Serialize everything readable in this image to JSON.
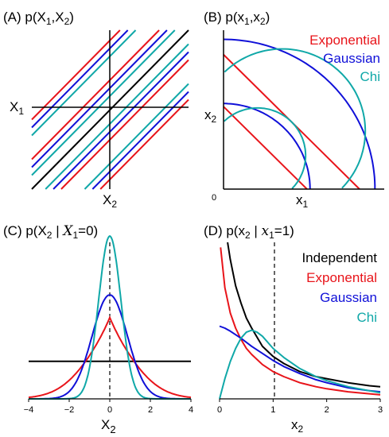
{
  "colors": {
    "exponential": "#e8141a",
    "gaussian": "#1010d8",
    "chi": "#10a8a8",
    "independent": "#000000"
  },
  "panels": [
    {
      "id": "A",
      "title": "(A)  p(X",
      "title_sub1": "1",
      "title_mid": ",X",
      "title_sub2": "2",
      "title_end": ")",
      "x_axis_label": "X",
      "x_axis_label_sub": "2",
      "y_axis_label": "X",
      "y_axis_label_sub": "1"
    },
    {
      "id": "B",
      "title": "(B)  p(x",
      "title_sub1": "1",
      "title_mid": ",x",
      "title_sub2": "2",
      "title_end": ")",
      "x_axis_label": "x",
      "x_axis_label_sub": "1",
      "y_axis_label": "x",
      "y_axis_label_sub": "2",
      "origin_label": "0",
      "legend": [
        "Exponential",
        "Gaussian",
        "Chi"
      ]
    },
    {
      "id": "C",
      "title": "(C)  p(X",
      "title_sub": "2",
      "title_cond": " | ",
      "title_var": "X",
      "title_var_sub": "1",
      "title_end": "=0)",
      "x_axis_label": "X",
      "x_axis_label_sub": "2"
    },
    {
      "id": "D",
      "title": "(D)  p(x",
      "title_sub": "2",
      "title_cond": " | ",
      "title_var": "x",
      "title_var_sub": "1",
      "title_end": "=1)",
      "x_axis_label": "x",
      "x_axis_label_sub": "2",
      "legend": [
        "Independent",
        "Exponential",
        "Gaussian",
        "Chi"
      ]
    }
  ],
  "chart_data": [
    {
      "panel": "A",
      "type": "line",
      "xlim": [
        -4,
        4
      ],
      "ylim": [
        -4,
        4
      ],
      "description_lines": "iso-density contours x1 = x2 + c",
      "series": [
        {
          "name": "Independent",
          "offsets": [
            0
          ]
        },
        {
          "name": "Exponential",
          "offsets": [
            -3.5,
            -1.5,
            1.5,
            3.5
          ]
        },
        {
          "name": "Gaussian",
          "offsets": [
            -3.1,
            -1.1,
            1.1,
            3.1
          ]
        },
        {
          "name": "Chi",
          "offsets": [
            -2.7,
            -0.7,
            0.7,
            2.7
          ]
        }
      ]
    },
    {
      "panel": "B",
      "type": "line",
      "xlim": [
        0,
        2.6
      ],
      "ylim": [
        0,
        2.6
      ],
      "series": [
        {
          "name": "Exponential",
          "kind": "lines_x1_plus_x2",
          "levels": [
            1.35,
            2.2
          ]
        },
        {
          "name": "Gaussian",
          "kind": "quarter_circles",
          "radii": [
            1.4,
            2.45
          ]
        },
        {
          "name": "Chi",
          "kind": "circles_through_origin",
          "centers": [
            [
              0.55,
              0.55
            ],
            [
              0.95,
              0.95
            ]
          ]
        }
      ]
    },
    {
      "panel": "C",
      "type": "line",
      "xlim": [
        -4,
        4
      ],
      "ylim": [
        0,
        1.25
      ],
      "x_ticks": [
        -4,
        -2,
        0,
        2,
        4
      ],
      "x_tick_labels": [
        "−4",
        "−2",
        "0",
        "2",
        "4"
      ],
      "dashed_at_x": 0,
      "series": [
        {
          "name": "Independent",
          "shape": "constant",
          "value": 0.3
        },
        {
          "name": "Exponential",
          "shape": "laplace",
          "scale": 1.0,
          "peak": 0.65
        },
        {
          "name": "Gaussian",
          "shape": "gaussian",
          "sigma": 0.87,
          "peak": 0.83
        },
        {
          "name": "Chi",
          "shape": "gaussian",
          "sigma": 0.55,
          "peak": 1.3
        }
      ]
    },
    {
      "panel": "D",
      "type": "line",
      "xlim": [
        0,
        3
      ],
      "ylim": [
        0,
        1.55
      ],
      "x_ticks": [
        0,
        1,
        2,
        3
      ],
      "x_tick_labels": [
        "0",
        "1",
        "2",
        "3"
      ],
      "dashed_at_x": 1,
      "series": [
        {
          "name": "Independent",
          "x": [
            0.15,
            0.2,
            0.3,
            0.4,
            0.5,
            0.6,
            0.8,
            1.0,
            1.2,
            1.5,
            1.8,
            2.0,
            2.4,
            2.8,
            3.0
          ],
          "y": [
            1.55,
            1.38,
            1.12,
            0.95,
            0.8,
            0.7,
            0.52,
            0.42,
            0.35,
            0.27,
            0.22,
            0.2,
            0.16,
            0.13,
            0.12
          ]
        },
        {
          "name": "Exponential",
          "x": [
            0.02,
            0.1,
            0.2,
            0.3,
            0.4,
            0.5,
            0.6,
            0.8,
            1.0,
            1.2,
            1.5,
            1.8,
            2.0,
            2.4,
            2.8,
            3.0
          ],
          "y": [
            1.5,
            1.1,
            0.85,
            0.7,
            0.59,
            0.5,
            0.44,
            0.34,
            0.27,
            0.22,
            0.16,
            0.12,
            0.1,
            0.07,
            0.05,
            0.04
          ]
        },
        {
          "name": "Gaussian",
          "x": [
            0.0,
            0.1,
            0.2,
            0.4,
            0.6,
            0.8,
            1.0,
            1.2,
            1.5,
            1.8,
            2.0,
            2.4,
            2.8,
            3.0
          ],
          "y": [
            0.72,
            0.7,
            0.67,
            0.6,
            0.52,
            0.45,
            0.38,
            0.32,
            0.25,
            0.19,
            0.16,
            0.11,
            0.08,
            0.07
          ]
        },
        {
          "name": "Chi",
          "x": [
            0.0,
            0.1,
            0.2,
            0.3,
            0.4,
            0.5,
            0.6,
            0.7,
            0.8,
            1.0,
            1.2,
            1.5,
            1.8,
            2.0,
            2.4,
            2.8,
            3.0
          ],
          "y": [
            0.0,
            0.2,
            0.37,
            0.5,
            0.6,
            0.66,
            0.68,
            0.66,
            0.62,
            0.5,
            0.41,
            0.3,
            0.22,
            0.18,
            0.12,
            0.08,
            0.06
          ]
        }
      ]
    }
  ]
}
